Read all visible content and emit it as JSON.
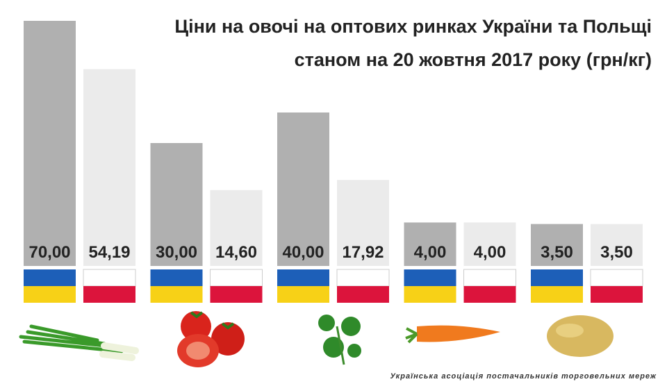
{
  "chart_data": {
    "type": "bar",
    "title_lines": [
      "Ціни на овочі на оптових ринках України та Польщі",
      "станом на 20 жовтня 2017 року (грн/кг)"
    ],
    "categories": [
      null,
      null,
      null,
      null,
      null
    ],
    "series": [
      {
        "color": "#b0b0b0",
        "values": [
          70,
          30,
          40,
          4,
          3.5
        ],
        "value_labels": [
          "70,00",
          "30,00",
          "40,00",
          "4,00",
          "3,50"
        ]
      },
      {
        "color": "#ebebeb",
        "values": [
          54.19,
          14.6,
          17.92,
          4,
          3.5
        ],
        "value_labels": [
          "54,19",
          "14,60",
          "17,92",
          "4,00",
          "3,50"
        ]
      }
    ],
    "footer": "Українська асоціація постачальників торговельних мереж"
  }
}
